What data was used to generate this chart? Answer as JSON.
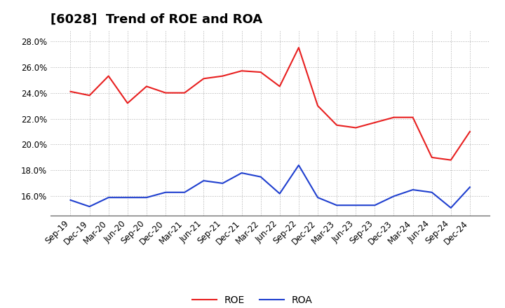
{
  "title": "[6028]  Trend of ROE and ROA",
  "x_labels": [
    "Sep-19",
    "Dec-19",
    "Mar-20",
    "Jun-20",
    "Sep-20",
    "Dec-20",
    "Mar-21",
    "Jun-21",
    "Sep-21",
    "Dec-21",
    "Mar-22",
    "Jun-22",
    "Sep-22",
    "Dec-22",
    "Mar-23",
    "Jun-23",
    "Sep-23",
    "Dec-23",
    "Mar-24",
    "Jun-24",
    "Sep-24",
    "Dec-24"
  ],
  "ROE": [
    24.1,
    23.8,
    25.3,
    23.2,
    24.5,
    24.0,
    24.0,
    25.1,
    25.3,
    25.7,
    25.6,
    24.5,
    27.5,
    23.0,
    21.5,
    21.3,
    21.7,
    22.1,
    22.1,
    19.0,
    18.8,
    21.0
  ],
  "ROA": [
    15.7,
    15.2,
    15.9,
    15.9,
    15.9,
    16.3,
    16.3,
    17.2,
    17.0,
    17.8,
    17.5,
    16.2,
    18.4,
    15.9,
    15.3,
    15.3,
    15.3,
    16.0,
    16.5,
    16.3,
    15.1,
    16.7
  ],
  "ROE_color": "#e82020",
  "ROA_color": "#1f3fcf",
  "ylim_min": 14.5,
  "ylim_max": 28.8,
  "yticks": [
    16.0,
    18.0,
    20.0,
    22.0,
    24.0,
    26.0,
    28.0
  ],
  "background_color": "#ffffff",
  "grid_color": "#999999",
  "title_fontsize": 13,
  "axis_fontsize": 8.5,
  "legend_fontsize": 10
}
